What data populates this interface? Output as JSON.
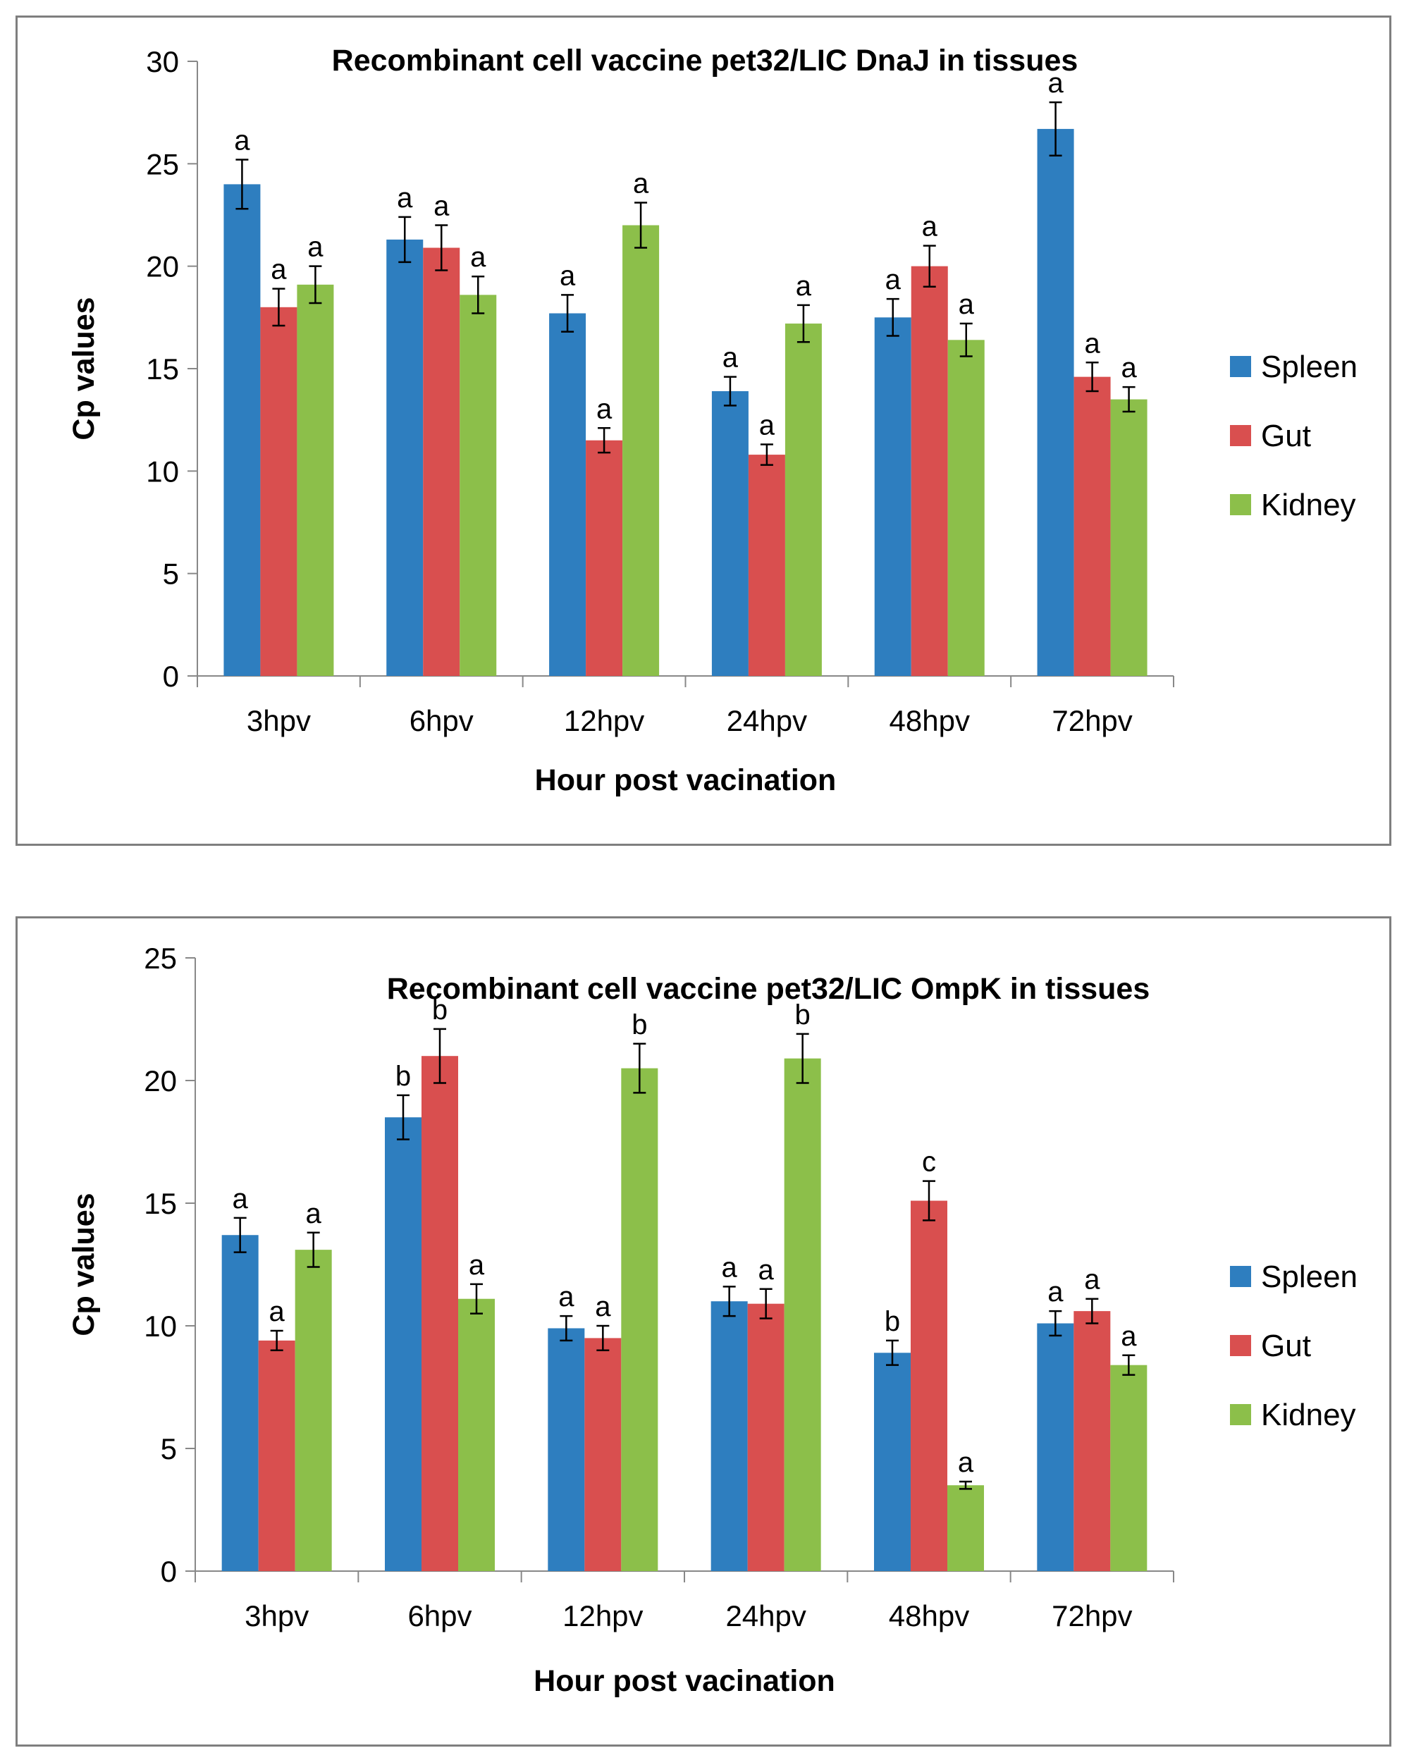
{
  "chart_data": [
    {
      "type": "bar",
      "title": "Recombinant cell vaccine pet32/LIC DnaJ in tissues",
      "xlabel": "Hour post vacination",
      "ylabel": "Cp values",
      "ylim": [
        0,
        30
      ],
      "yticks": [
        0,
        5,
        10,
        15,
        20,
        25,
        30
      ],
      "grid": false,
      "legend_position": "right",
      "categories": [
        "3hpv",
        "6hpv",
        "12hpv",
        "24hpv",
        "48hpv",
        "72hpv"
      ],
      "series": [
        {
          "name": "Spleen",
          "color": "#2e7ebf",
          "values": [
            24.0,
            21.3,
            17.7,
            13.9,
            17.5,
            26.7
          ],
          "errors": [
            1.2,
            1.1,
            0.9,
            0.7,
            0.9,
            1.3
          ],
          "labels": [
            "a",
            "a",
            "a",
            "a",
            "a",
            "a"
          ]
        },
        {
          "name": "Gut",
          "color": "#d94f4f",
          "values": [
            18.0,
            20.9,
            11.5,
            10.8,
            20.0,
            14.6
          ],
          "errors": [
            0.9,
            1.1,
            0.6,
            0.5,
            1.0,
            0.7
          ],
          "labels": [
            "a",
            "a",
            "a",
            "a",
            "a",
            "a"
          ]
        },
        {
          "name": "Kidney",
          "color": "#8cbf4a",
          "values": [
            19.1,
            18.6,
            22.0,
            17.2,
            16.4,
            13.5
          ],
          "errors": [
            0.9,
            0.9,
            1.1,
            0.9,
            0.8,
            0.6
          ],
          "labels": [
            "a",
            "a",
            "a",
            "a",
            "a",
            "a"
          ]
        }
      ]
    },
    {
      "type": "bar",
      "title": "Recombinant cell vaccine pet32/LIC OmpK in tissues",
      "xlabel": "Hour post vacination",
      "ylabel": "Cp values",
      "ylim": [
        0,
        25
      ],
      "yticks": [
        0,
        5,
        10,
        15,
        20,
        25
      ],
      "grid": false,
      "legend_position": "right",
      "categories": [
        "3hpv",
        "6hpv",
        "12hpv",
        "24hpv",
        "48hpv",
        "72hpv"
      ],
      "series": [
        {
          "name": "Spleen",
          "color": "#2e7ebf",
          "values": [
            13.7,
            18.5,
            9.9,
            11.0,
            8.9,
            10.1
          ],
          "errors": [
            0.7,
            0.9,
            0.5,
            0.6,
            0.5,
            0.5
          ],
          "labels": [
            "a",
            "b",
            "a",
            "a",
            "b",
            "a"
          ]
        },
        {
          "name": "Gut",
          "color": "#d94f4f",
          "values": [
            9.4,
            21.0,
            9.5,
            10.9,
            15.1,
            10.6
          ],
          "errors": [
            0.4,
            1.1,
            0.5,
            0.6,
            0.8,
            0.5
          ],
          "labels": [
            "a",
            "b",
            "a",
            "a",
            "c",
            "a"
          ]
        },
        {
          "name": "Kidney",
          "color": "#8cbf4a",
          "values": [
            13.1,
            11.1,
            20.5,
            20.9,
            3.5,
            8.4
          ],
          "errors": [
            0.7,
            0.6,
            1.0,
            1.0,
            0.15,
            0.4
          ],
          "labels": [
            "a",
            "a",
            "b",
            "b",
            "a",
            "a"
          ]
        }
      ]
    }
  ]
}
